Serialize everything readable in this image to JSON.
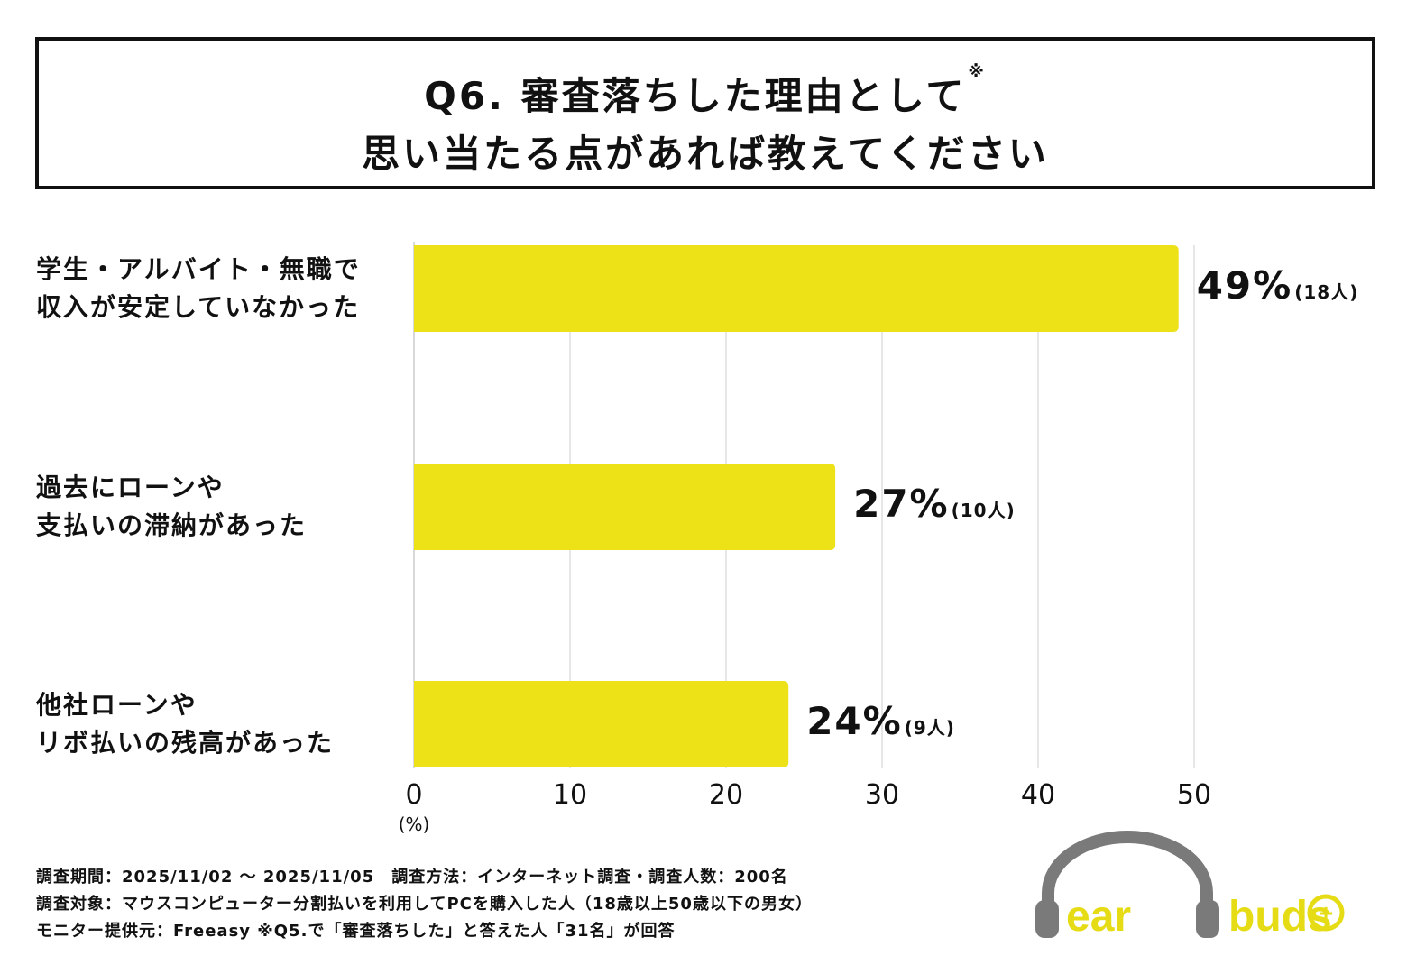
{
  "title": {
    "line1": "Q6. 審査落ちした理由として",
    "mark": "※",
    "line2": "思い当たる点があれば教えてください"
  },
  "chart_data": {
    "type": "bar",
    "orientation": "horizontal",
    "categories": [
      [
        "学生・アルバイト・無職で",
        "収入が安定していなかった"
      ],
      [
        "過去にローンや",
        "支払いの滞納があった"
      ],
      [
        "他社ローンや",
        "リボ払いの残高があった"
      ]
    ],
    "values": [
      49,
      27,
      24
    ],
    "value_labels": [
      "49%",
      "27%",
      "24%"
    ],
    "counts": [
      "(18人)",
      "(10人)",
      "(9人)"
    ],
    "xticks": [
      "0",
      "10",
      "20",
      "30",
      "40",
      "50"
    ],
    "xlim": [
      0,
      50
    ],
    "unit": "(%)",
    "grid": "vertical",
    "bar_color": "#ECE217",
    "grid_color": "#DDDDDD"
  },
  "footer": {
    "line1": "調査期間：2025/11/02 ～ 2025/11/05　調査方法：インターネット調査・調査人数：200名",
    "line2": "調査対象：マウスコンピューター分割払いを利用してPCを購入した人（18歳以上50歳以下の男女）",
    "line3": "モニター提供元：Freeasy ※Q5.で「審査落ちした」と答えた人「31名」が回答"
  },
  "logo": {
    "text_left": "ear",
    "text_right": "buds",
    "symbol": "+",
    "text_color": "#E6DC16",
    "headphone_color": "#7A7A7A"
  }
}
